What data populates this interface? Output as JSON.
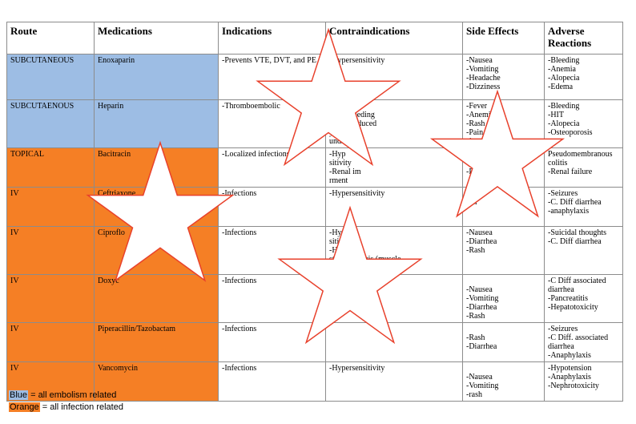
{
  "table": {
    "headers": [
      "Route",
      "Medications",
      "Indications",
      "Contraindications",
      "Side Effects",
      "Adverse Reactions"
    ],
    "rows": [
      {
        "route": "SUBCUTANEOUS",
        "color": "blue",
        "medication": "Enoxaparin",
        "indications": [
          "-Prevents VTE, DVT, and PE"
        ],
        "contraindications": [
          "-Hypersensitivity"
        ],
        "side_effects": [
          "-Nausea",
          "-Vomiting",
          "-Headache",
          "-Dizziness"
        ],
        "adverse": [
          "-Bleeding",
          "-Anemia",
          "-Alopecia",
          "-Edema"
        ]
      },
      {
        "route": "SUBCUTAENOUS",
        "color": "blue",
        "medication": "Heparin",
        "indications": [
          "-Thromboembolic"
        ],
        "contraindications": [
          "ivity",
          "olled bleeding",
          "eparin induced",
          "ytopenia",
          "unds"
        ],
        "side_effects": [
          "-Fever",
          "-Anemi",
          "-Rash",
          "-Pain a",
          "site"
        ],
        "adverse": [
          "-Bleeding",
          "-HIT",
          "-Alopecia",
          "-Osteoporosis"
        ]
      },
      {
        "route": "TOPICAL",
        "color": "orange",
        "medication": "Bacitracin",
        "indications": [
          "-Localized infections"
        ],
        "contraindications": [
          "-Hyp",
          "sitivity",
          "-Renal im",
          "rment"
        ],
        "side_effects": [
          "-",
          "-Ra",
          "-P"
        ],
        "adverse": [
          "Pseudomembranous",
          "colitis",
          "-Renal failure"
        ]
      },
      {
        "route": "IV",
        "color": "orange",
        "medication": "Ceftriaxone",
        "indications": [
          "-Infections"
        ],
        "contraindications": [
          "-Hypersensitivity"
        ],
        "side_effects": [
          "ea",
          "ash"
        ],
        "adverse": [
          "-Seizures",
          "-C. Diff diarrhea",
          "-anaphylaxis"
        ]
      },
      {
        "route": "IV",
        "color": "orange",
        "medication": "Ciproflo",
        "indications": [
          "-Infections"
        ],
        "contraindications": [
          "-Hyp",
          "sitivity",
          "-Hx",
          "sthenia gravis (muscle",
          "we"
        ],
        "side_effects": [
          "-Nausea",
          "-Diarrhea",
          "-Rash"
        ],
        "adverse": [
          "-Suicidal thoughts",
          "-C. Diff diarrhea"
        ]
      },
      {
        "route": "IV",
        "color": "orange",
        "medication": "Doxyc",
        "indications": [
          "-Infections"
        ],
        "contraindications": [],
        "side_effects": [
          "-Nausea",
          "-Vomiting",
          "-Diarrhea",
          "-Rash"
        ],
        "adverse": [
          "-C Diff associated",
          "diarrhea",
          "-Pancreatitis",
          "-Hepatotoxicity"
        ]
      },
      {
        "route": "IV",
        "color": "orange",
        "medication": "Piperacillin/Tazobactam",
        "indications": [
          "-Infections"
        ],
        "contraindications": [],
        "side_effects": [
          "-Rash",
          "-Diarrhea"
        ],
        "adverse": [
          "-Seizures",
          "-C Diff. associated",
          "diarrhea",
          "-Anaphylaxis"
        ]
      },
      {
        "route": "IV",
        "color": "orange",
        "medication": "Vancomycin",
        "indications": [
          "-Infections"
        ],
        "contraindications": [
          "-Hypersensitivity"
        ],
        "side_effects": [
          "-Nausea",
          "-Vomiting",
          "-rash"
        ],
        "adverse": [
          "-Hypotension",
          "-Anaphylaxis",
          "-Nephrotoxicity"
        ]
      }
    ]
  },
  "legend": {
    "blue_label": "Blue",
    "blue_text": " = all embolism related",
    "orange_label": "Orange",
    "orange_text": " = all infection related"
  },
  "colors": {
    "blue": "#9dbde4",
    "orange": "#f57f25",
    "star_stroke": "#e8412c"
  }
}
